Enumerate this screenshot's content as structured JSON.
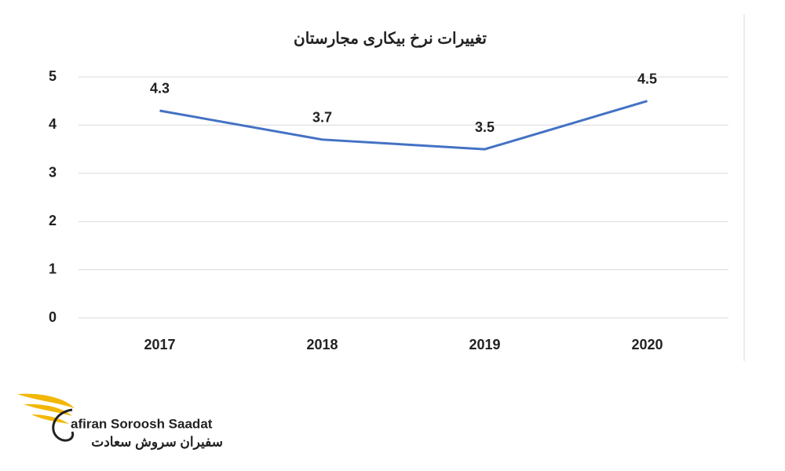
{
  "chart_data": {
    "type": "line",
    "title": "تغییرات نرخ بیکاری مجارستان",
    "categories": [
      "2017",
      "2018",
      "2019",
      "2020"
    ],
    "values": [
      4.3,
      3.7,
      3.5,
      4.5
    ],
    "color": "#4472c4",
    "ylim": [
      0,
      5
    ],
    "yticks": [
      0,
      1,
      2,
      3,
      4,
      5
    ],
    "grid": true,
    "data_labels": true
  },
  "logo": {
    "name_en": "afiran Soroosh Saadat",
    "name_fa": "سفیران سروش سعادت"
  }
}
